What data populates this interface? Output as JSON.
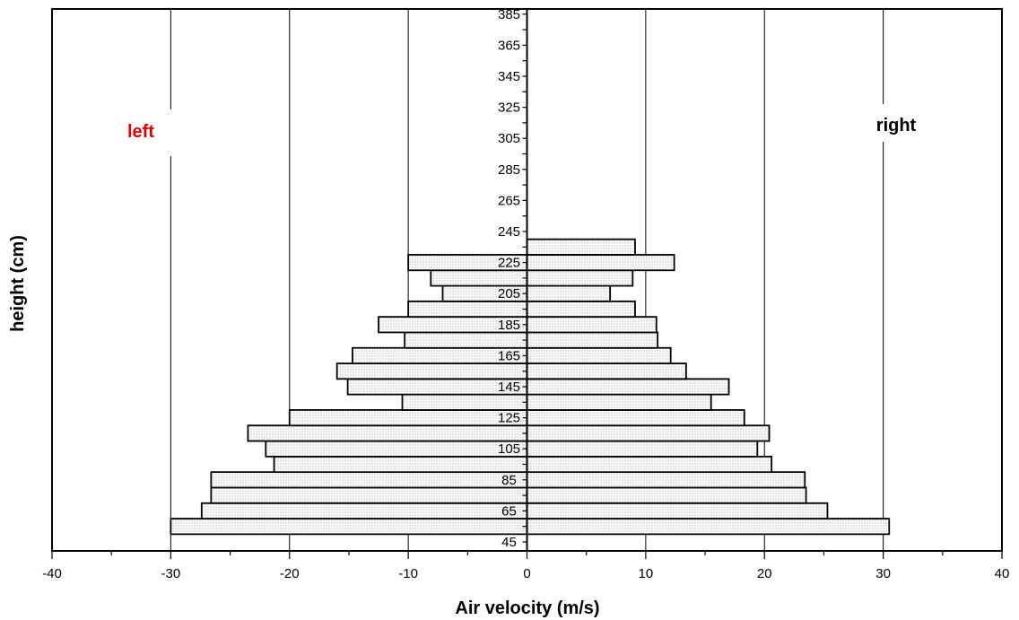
{
  "chart_data": {
    "type": "bar",
    "orientation": "horizontal-diverging",
    "xlabel": "Air velocity (m/s)",
    "ylabel": "height (cm)",
    "xlim": [
      -40,
      40
    ],
    "x_ticks": [
      "-40",
      "-30",
      "-20",
      "-10",
      "0",
      "10",
      "20",
      "30",
      "40"
    ],
    "y_tick_labels": [
      "45",
      "65",
      "85",
      "105",
      "125",
      "145",
      "165",
      "185",
      "205",
      "225",
      "245",
      "265",
      "285",
      "305",
      "325",
      "345",
      "365",
      "385"
    ],
    "grid": "vertical lines at -30, -20, -10, 10, 20, 30",
    "annotations": {
      "left": {
        "text": "left",
        "color": "#e00000"
      },
      "right": {
        "text": "right",
        "color": "#000000"
      }
    },
    "categories": [
      55,
      65,
      75,
      85,
      95,
      105,
      115,
      125,
      135,
      145,
      155,
      165,
      175,
      185,
      195,
      205,
      215,
      225,
      235
    ],
    "series": [
      {
        "name": "left",
        "values": [
          -30,
          -27.4,
          -26.6,
          -26.6,
          -21.3,
          -22,
          -23.5,
          -20,
          -10.5,
          -15.1,
          -16,
          -14.7,
          -10.3,
          -12.5,
          -10,
          -7.1,
          -8.1,
          -10,
          0
        ]
      },
      {
        "name": "right",
        "values": [
          30.5,
          25.3,
          23.5,
          23.4,
          20.6,
          19.4,
          20.4,
          18.3,
          15.5,
          17,
          13.4,
          12.1,
          11,
          10.9,
          9.1,
          7,
          8.9,
          12.4,
          9.1
        ]
      }
    ],
    "bar_fill": "dotted light gray",
    "bar_stroke": "#000000"
  }
}
